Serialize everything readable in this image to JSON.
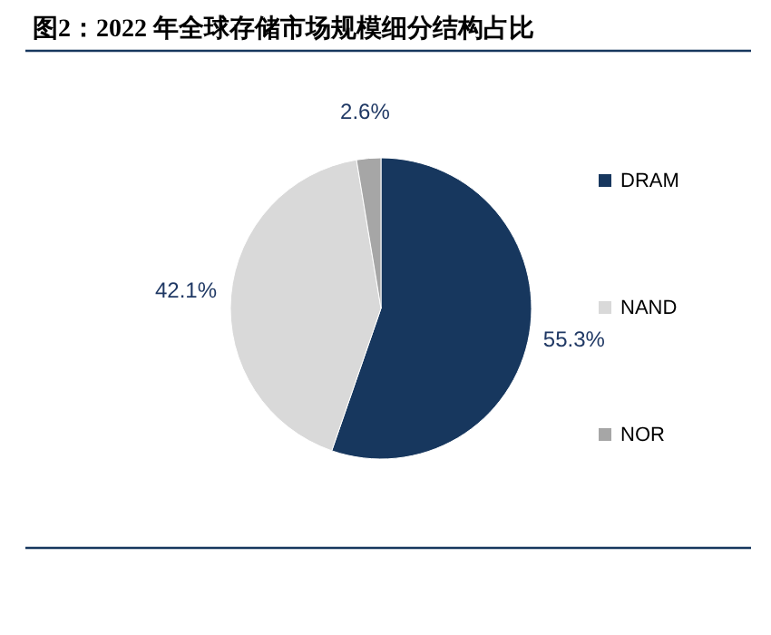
{
  "chart_data": {
    "type": "pie",
    "title": "图2：2022 年全球存储市场规模细分结构占比",
    "categories": [
      "DRAM",
      "NAND",
      "NOR"
    ],
    "values": [
      55.3,
      42.1,
      2.6
    ],
    "colors": [
      "#17375e",
      "#d9d9d9",
      "#a6a6a6"
    ],
    "value_labels": [
      "55.3%",
      "42.1%",
      "2.6%"
    ],
    "legend": "right"
  }
}
